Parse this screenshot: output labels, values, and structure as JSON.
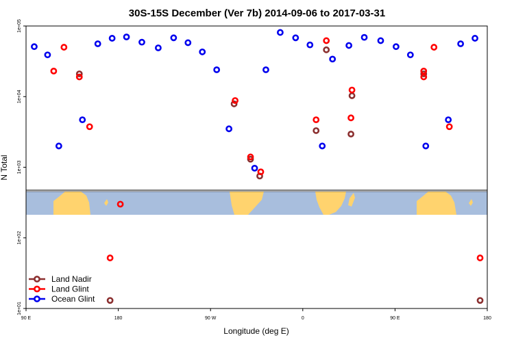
{
  "chart_data": {
    "type": "scatter",
    "title": "30S-15S December (Ver 7b)   2014-09-06 to 2017-03-31",
    "xlabel": "Longitude (deg E)",
    "ylabel": "N Total",
    "y_scale": "log",
    "ylim": [
      10,
      100000
    ],
    "x_axis_note": "longitude runs from 90 E through 180, 90 W, 0 and 90 E back to 180",
    "x_ticks": [
      {
        "value": 0,
        "label": "90 E"
      },
      {
        "value": 90,
        "label": "180"
      },
      {
        "value": 180,
        "label": "90 W"
      },
      {
        "value": 270,
        "label": "0"
      },
      {
        "value": 360,
        "label": "90 E"
      },
      {
        "value": 450,
        "label": "180"
      }
    ],
    "y_ticks": [
      {
        "value": 10,
        "label": "1e+01"
      },
      {
        "value": 100,
        "label": "1e+02"
      },
      {
        "value": 1000,
        "label": "1e+03"
      },
      {
        "value": 10000,
        "label": "1e+04"
      },
      {
        "value": 100000,
        "label": "1e+05"
      }
    ],
    "legend_position": "bottom-left",
    "series": [
      {
        "name": "Land Nadir",
        "color": "#8b2f2f",
        "points": [
          [
            52,
            21000
          ],
          [
            82,
            13
          ],
          [
            203,
            7900
          ],
          [
            219,
            1300
          ],
          [
            228,
            750
          ],
          [
            283,
            3300
          ],
          [
            293,
            46000
          ],
          [
            318,
            10300
          ],
          [
            317,
            2950
          ],
          [
            388,
            21000
          ],
          [
            443,
            13
          ]
        ]
      },
      {
        "name": "Land Glint",
        "color": "#ff0000",
        "points": [
          [
            27,
            23000
          ],
          [
            37,
            50000
          ],
          [
            52,
            19000
          ],
          [
            62,
            3750
          ],
          [
            82,
            52
          ],
          [
            92,
            300
          ],
          [
            204,
            8800
          ],
          [
            219,
            1400
          ],
          [
            229,
            860
          ],
          [
            283,
            4700
          ],
          [
            293,
            62000
          ],
          [
            318,
            12400
          ],
          [
            317,
            5000
          ],
          [
            388,
            19000
          ],
          [
            388,
            23000
          ],
          [
            398,
            50000
          ],
          [
            413,
            3750
          ],
          [
            443,
            52
          ]
        ]
      },
      {
        "name": "Ocean Glint",
        "color": "#0000ee",
        "points": [
          [
            8,
            51000
          ],
          [
            21,
            39000
          ],
          [
            32,
            2000
          ],
          [
            55,
            4700
          ],
          [
            70,
            56000
          ],
          [
            84,
            67000
          ],
          [
            98,
            70000
          ],
          [
            113,
            59000
          ],
          [
            129,
            49000
          ],
          [
            144,
            68000
          ],
          [
            158,
            58000
          ],
          [
            172,
            43000
          ],
          [
            186,
            24000
          ],
          [
            198,
            3500
          ],
          [
            223,
            970
          ],
          [
            234,
            24000
          ],
          [
            248,
            81000
          ],
          [
            263,
            68000
          ],
          [
            277,
            54000
          ],
          [
            289,
            2000
          ],
          [
            299,
            34000
          ],
          [
            315,
            53000
          ],
          [
            330,
            69000
          ],
          [
            346,
            62000
          ],
          [
            361,
            51000
          ],
          [
            375,
            39000
          ],
          [
            390,
            2000
          ],
          [
            412,
            4700
          ],
          [
            424,
            56000
          ],
          [
            438,
            67000
          ]
        ]
      }
    ]
  }
}
